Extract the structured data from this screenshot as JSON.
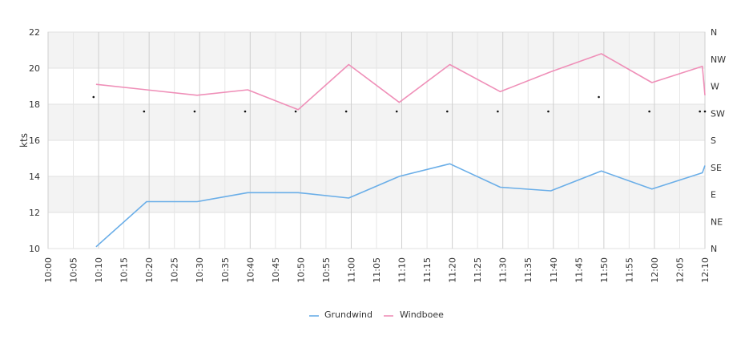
{
  "chart_data": {
    "type": "line",
    "ylabel": "kts",
    "ylim": [
      10,
      22
    ],
    "yticks": [
      10,
      12,
      14,
      16,
      18,
      20,
      22
    ],
    "x_labels": [
      "10:00",
      "10:05",
      "10:10",
      "10:15",
      "10:20",
      "10:25",
      "10:30",
      "10:35",
      "10:40",
      "10:45",
      "10:50",
      "10:55",
      "11:00",
      "11:05",
      "11:10",
      "11:15",
      "11:20",
      "11:25",
      "11:30",
      "11:35",
      "11:40",
      "11:45",
      "11:50",
      "11:55",
      "12:00",
      "12:05",
      "12:10"
    ],
    "x_range_minutes": [
      0,
      130
    ],
    "right_axis_labels": [
      "N",
      "NE",
      "E",
      "SE",
      "S",
      "SW",
      "W",
      "NW",
      "N"
    ],
    "grid": true,
    "legend_position": "bottom",
    "series": [
      {
        "name": "Grundwind",
        "color": "#6aaee8",
        "x": [
          9.5,
          19.5,
          29.5,
          39.5,
          49.5,
          59.5,
          69.5,
          79.5,
          89.5,
          99.5,
          109.5,
          119.5,
          129.5,
          130
        ],
        "y": [
          10.1,
          12.6,
          12.6,
          13.1,
          13.1,
          12.8,
          14.0,
          14.7,
          13.4,
          13.2,
          14.3,
          13.3,
          14.2,
          14.6
        ]
      },
      {
        "name": "Windboee",
        "color": "#ef8fb8",
        "x": [
          9.5,
          19.5,
          29.5,
          39.5,
          49.5,
          59.5,
          69.5,
          79.5,
          89.5,
          99.5,
          109.5,
          119.5,
          129.5,
          130
        ],
        "y": [
          19.1,
          18.8,
          18.5,
          18.8,
          17.7,
          20.2,
          18.1,
          20.2,
          18.7,
          19.8,
          20.8,
          19.2,
          20.1,
          18.5
        ]
      }
    ],
    "direction_points": {
      "x": [
        9,
        19,
        29,
        39,
        49,
        59,
        69,
        79,
        89,
        99,
        109,
        119,
        129,
        130
      ],
      "y": [
        18.4,
        17.6,
        17.6,
        17.6,
        17.6,
        17.6,
        17.6,
        17.6,
        17.6,
        17.6,
        18.4,
        17.6,
        17.6,
        17.6
      ]
    }
  }
}
